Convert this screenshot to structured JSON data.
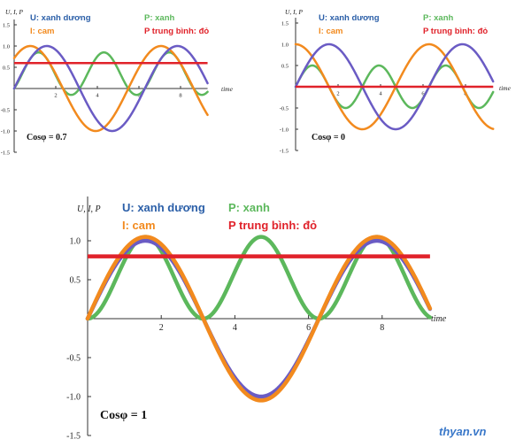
{
  "watermark": "thyan.vn",
  "legend_colors": {
    "u": "#6a5bc4",
    "p": "#5cb85c",
    "i": "#f28a1e",
    "pavg": "#e0222a"
  },
  "chart_data": [
    {
      "type": "line",
      "title": "",
      "xlabel": "time",
      "ylabel": "U, I, P",
      "xlim": [
        0,
        9.3
      ],
      "ylim": [
        -1.5,
        1.5
      ],
      "x_ticks": [
        2,
        4,
        6,
        8
      ],
      "y_ticks": [
        -1.5,
        -1.0,
        -0.5,
        0.5,
        1.0,
        1.5
      ],
      "x_tick_labels": [
        "2",
        "4",
        "6",
        "8"
      ],
      "y_tick_labels": [
        "-1.5",
        "-1.0",
        "-0.5",
        "0.5",
        "1.0",
        "1.5"
      ],
      "legend": [
        "U: xanh dương",
        "P: xanh",
        "I: cam",
        "P trung bình: đỏ"
      ],
      "annotation": "Cosφ = 0.7",
      "cos_phi": 0.7,
      "series": [
        {
          "name": "U: xanh dương",
          "key": "u",
          "formula": "sin(t)",
          "amplitude": 1.0
        },
        {
          "name": "I: cam",
          "key": "i",
          "formula": "sin(t + φ)",
          "amplitude": 1.0,
          "phase_rad": 0.795
        },
        {
          "name": "P: xanh",
          "key": "p",
          "formula": "U·I"
        },
        {
          "name": "P trung bình: đỏ",
          "key": "pavg",
          "value": 0.6
        }
      ]
    },
    {
      "type": "line",
      "title": "",
      "xlabel": "time",
      "ylabel": "U, I, P",
      "xlim": [
        0,
        9.3
      ],
      "ylim": [
        -1.5,
        1.5
      ],
      "x_ticks": [
        2,
        4,
        6,
        8
      ],
      "y_ticks": [
        -1.5,
        -1.0,
        -0.5,
        0.5,
        1.0,
        1.5
      ],
      "x_tick_labels": [
        "2",
        "4",
        "6",
        "8"
      ],
      "y_tick_labels": [
        "-1.5",
        "-1.0",
        "-0.5",
        "0.5",
        "1.0",
        "1.5"
      ],
      "legend": [
        "U: xanh dương",
        "P: xanh",
        "I: cam",
        "P trung bình: đỏ"
      ],
      "annotation": "Cosφ = 0",
      "cos_phi": 0,
      "series": [
        {
          "name": "U: xanh dương",
          "key": "u",
          "formula": "sin(t)",
          "amplitude": 1.0
        },
        {
          "name": "I: cam",
          "key": "i",
          "formula": "sin(t + φ)",
          "amplitude": 1.0,
          "phase_rad": 1.5708
        },
        {
          "name": "P: xanh",
          "key": "p",
          "formula": "U·I"
        },
        {
          "name": "P trung bình: đỏ",
          "key": "pavg",
          "value": 0.0
        }
      ]
    },
    {
      "type": "line",
      "title": "",
      "xlabel": "time",
      "ylabel": "U, I, P",
      "xlim": [
        0,
        9.3
      ],
      "ylim": [
        -1.5,
        1.5
      ],
      "x_ticks": [
        2,
        4,
        6,
        8
      ],
      "y_ticks": [
        -1.5,
        -1.0,
        -0.5,
        0.5,
        1.0
      ],
      "x_tick_labels": [
        "2",
        "4",
        "6",
        "8"
      ],
      "y_tick_labels": [
        "-1.5",
        "-1.0",
        "-0.5",
        "0.5",
        "1.0"
      ],
      "legend": [
        "U: xanh dương",
        "P: xanh",
        "I: cam",
        "P trung bình: đỏ"
      ],
      "annotation": "Cosφ = 1",
      "cos_phi": 1,
      "series": [
        {
          "name": "U: xanh dương",
          "key": "u",
          "formula": "sin(t)",
          "amplitude": 1.0
        },
        {
          "name": "I: cam",
          "key": "i",
          "formula": "sin(t + φ)",
          "amplitude": 1.05,
          "phase_rad": 0
        },
        {
          "name": "P: xanh",
          "key": "p",
          "formula": "U·I"
        },
        {
          "name": "P trung bình: đỏ",
          "key": "pavg",
          "value": 0.8
        }
      ]
    }
  ]
}
